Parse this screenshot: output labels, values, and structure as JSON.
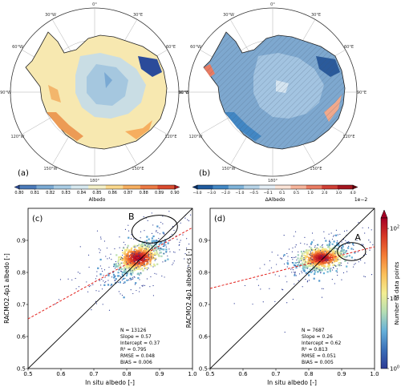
{
  "colors": {
    "albedo_scale": [
      "#2b4b9a",
      "#4a7ab9",
      "#7aa9d3",
      "#a9cce4",
      "#d6e8ef",
      "#f4f0c8",
      "#fbd88c",
      "#f6ae5f",
      "#ec7a43",
      "#d94a2e",
      "#b71c23"
    ],
    "diff_scale": [
      "#08306b",
      "#1f5a9e",
      "#4287c4",
      "#7db2d8",
      "#b6d3e7",
      "#e4eef5",
      "#fbe3d6",
      "#f6b49a",
      "#e97b62",
      "#cf3f35",
      "#a4161f",
      "#67000d"
    ],
    "density_scale": [
      "#2c3a94",
      "#3a6fb8",
      "#66b0d9",
      "#b4deb4",
      "#f3ee92",
      "#fbc05a",
      "#f47d36",
      "#d83a26",
      "#a50026"
    ],
    "one_to_one": "#000000",
    "regression": "#e3211c"
  },
  "maps": {
    "lon_labels": [
      "0°",
      "30°E",
      "60°E",
      "90°E",
      "120°E",
      "150°E",
      "180°",
      "150°W",
      "120°W",
      "90°W",
      "60°W",
      "30°W"
    ],
    "left": {
      "panel_label": "(a)",
      "colorbar_label": "Albedo",
      "colorbar_ticks": [
        "0.80",
        "0.81",
        "0.82",
        "0.83",
        "0.84",
        "0.85",
        "0.86",
        "0.87",
        "0.88",
        "0.89",
        "0.90"
      ]
    },
    "right": {
      "panel_label": "(b)",
      "colorbar_label": "ΔAlbedo",
      "colorbar_exponent": "1e−2",
      "colorbar_ticks": [
        "−4.0",
        "−3.0",
        "−2.0",
        "−1.0",
        "−0.5",
        "−0.1",
        "0.1",
        "0.5",
        "1.0",
        "2.0",
        "3.0",
        "4.0"
      ]
    }
  },
  "chart_data": [
    {
      "type": "scatter",
      "panel_label": "(c)",
      "xlabel": "In situ albedo [-]",
      "ylabel": "RACMO2.4p1 albedo [-]",
      "xlim": [
        0.5,
        1.0
      ],
      "ylim": [
        0.5,
        1.0
      ],
      "xticks": [
        "0.5",
        "0.6",
        "0.7",
        "0.8",
        "0.9",
        "1.0"
      ],
      "yticks": [
        "0.5",
        "0.6",
        "0.7",
        "0.8",
        "0.9"
      ],
      "annotation": "B",
      "regression": {
        "slope": 0.57,
        "intercept": 0.37
      },
      "stats": [
        "N = 13126",
        "Slope = 0.57",
        "Intercept = 0.37",
        "R² = 0.795",
        "RMSE = 0.048",
        "BIAS = 0.006"
      ]
    },
    {
      "type": "scatter",
      "panel_label": "(d)",
      "xlabel": "In situ albedo [-]",
      "ylabel": "RACMO2.4p1 albedo-cs [-]",
      "xlim": [
        0.5,
        1.0
      ],
      "ylim": [
        0.5,
        1.0
      ],
      "xticks": [
        "0.5",
        "0.6",
        "0.7",
        "0.8",
        "0.9",
        "1.0"
      ],
      "yticks": [
        "0.5",
        "0.6",
        "0.7",
        "0.8",
        "0.9"
      ],
      "annotation": "A",
      "regression": {
        "slope": 0.26,
        "intercept": 0.62
      },
      "stats": [
        "N = 7687",
        "Slope = 0.26",
        "Intercept = 0.62",
        "R² = 0.813",
        "RMSE = 0.051",
        "BIAS = 0.005"
      ]
    }
  ],
  "density_colorbar": {
    "label": "Number of data points",
    "ticks": [
      {
        "base": "10",
        "exp": "0",
        "log": 0
      },
      {
        "base": "10",
        "exp": "1",
        "log": 1
      },
      {
        "base": "10",
        "exp": "2",
        "log": 2
      }
    ],
    "log_range": [
      0,
      2.15
    ]
  }
}
